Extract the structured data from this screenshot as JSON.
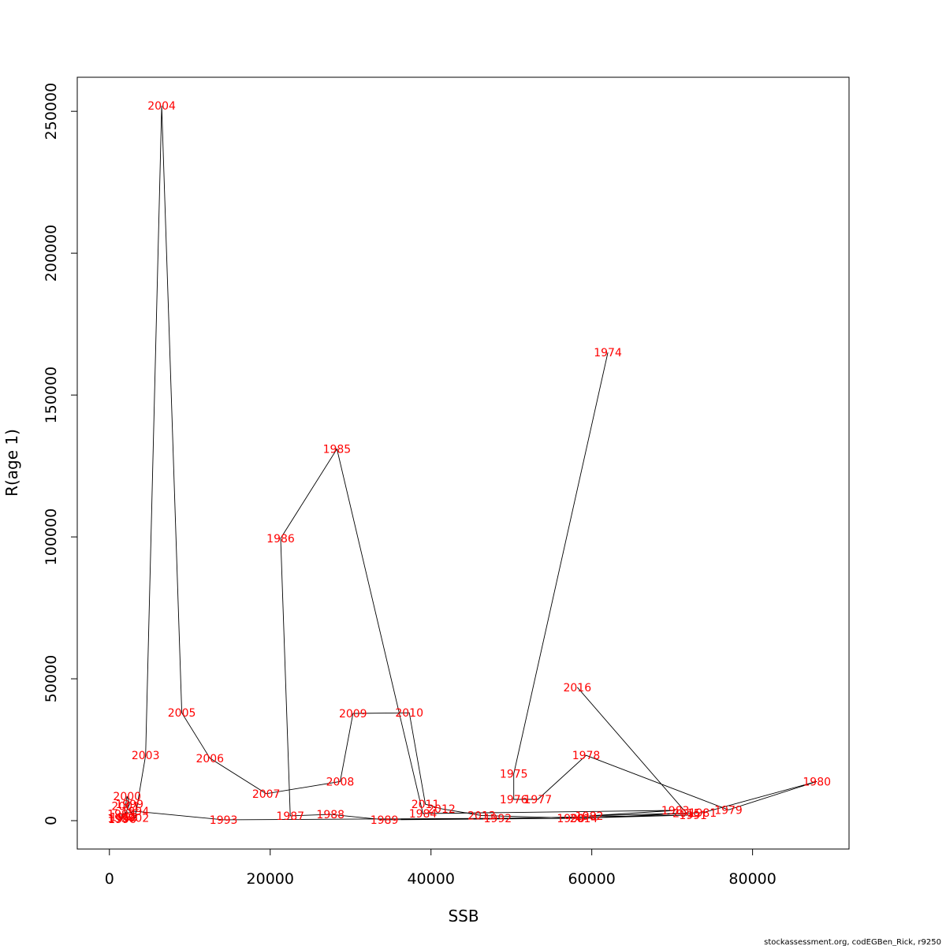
{
  "chart_data": {
    "type": "line",
    "xlabel": "SSB",
    "ylabel": "R(age 1)",
    "xlim": [
      -4000,
      92000
    ],
    "ylim": [
      -10000,
      262000
    ],
    "x_ticks": [
      0,
      20000,
      40000,
      60000,
      80000
    ],
    "y_ticks": [
      0,
      50000,
      100000,
      150000,
      200000,
      250000
    ],
    "label_color": "#ff0000",
    "line_color": "#000000",
    "grid": false,
    "legend": false,
    "points": [
      {
        "year": "1974",
        "x": 62000,
        "y": 165000
      },
      {
        "year": "1975",
        "x": 50300,
        "y": 16500
      },
      {
        "year": "1976",
        "x": 50300,
        "y": 7500
      },
      {
        "year": "1977",
        "x": 53300,
        "y": 7500
      },
      {
        "year": "1978",
        "x": 59300,
        "y": 23000
      },
      {
        "year": "1979",
        "x": 77000,
        "y": 3800
      },
      {
        "year": "1980",
        "x": 88000,
        "y": 13800
      },
      {
        "year": "1981",
        "x": 73800,
        "y": 2800
      },
      {
        "year": "1982",
        "x": 59700,
        "y": 1700
      },
      {
        "year": "1983",
        "x": 70400,
        "y": 3600
      },
      {
        "year": "1984",
        "x": 39000,
        "y": 2500
      },
      {
        "year": "1985",
        "x": 28300,
        "y": 131000
      },
      {
        "year": "1986",
        "x": 21300,
        "y": 99500
      },
      {
        "year": "1987",
        "x": 22500,
        "y": 1700
      },
      {
        "year": "1988",
        "x": 27500,
        "y": 2200
      },
      {
        "year": "1989",
        "x": 34200,
        "y": 300
      },
      {
        "year": "1990",
        "x": 57400,
        "y": 800
      },
      {
        "year": "1991",
        "x": 72600,
        "y": 2000
      },
      {
        "year": "1992",
        "x": 48300,
        "y": 800
      },
      {
        "year": "1993",
        "x": 14200,
        "y": 300
      },
      {
        "year": "1994",
        "x": 3200,
        "y": 3300
      },
      {
        "year": "1995",
        "x": 1500,
        "y": 2300
      },
      {
        "year": "1996",
        "x": 1600,
        "y": 600
      },
      {
        "year": "1997",
        "x": 1500,
        "y": 800
      },
      {
        "year": "1998",
        "x": 1800,
        "y": 1200
      },
      {
        "year": "1999",
        "x": 2500,
        "y": 5800
      },
      {
        "year": "2000",
        "x": 2200,
        "y": 8600
      },
      {
        "year": "2001",
        "x": 2000,
        "y": 5200
      },
      {
        "year": "2002",
        "x": 3200,
        "y": 1000
      },
      {
        "year": "2003",
        "x": 4500,
        "y": 23000
      },
      {
        "year": "2004",
        "x": 6500,
        "y": 252000
      },
      {
        "year": "2005",
        "x": 9000,
        "y": 38000
      },
      {
        "year": "2006",
        "x": 12500,
        "y": 22000
      },
      {
        "year": "2007",
        "x": 19500,
        "y": 9500
      },
      {
        "year": "2008",
        "x": 28700,
        "y": 13800
      },
      {
        "year": "2009",
        "x": 30300,
        "y": 37800
      },
      {
        "year": "2010",
        "x": 37300,
        "y": 38000
      },
      {
        "year": "2011",
        "x": 39300,
        "y": 5800
      },
      {
        "year": "2012",
        "x": 41300,
        "y": 4200
      },
      {
        "year": "2013",
        "x": 46300,
        "y": 1800
      },
      {
        "year": "2014",
        "x": 59000,
        "y": 800
      },
      {
        "year": "2015",
        "x": 71800,
        "y": 2600
      },
      {
        "year": "2016",
        "x": 58200,
        "y": 47000
      }
    ]
  },
  "footer": {
    "credit": "stockassessment.org, codEGBen_Rick, r9250"
  }
}
